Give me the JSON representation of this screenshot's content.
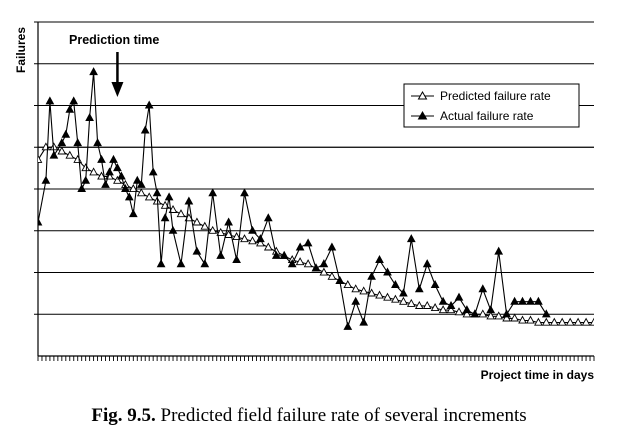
{
  "chart_data": {
    "type": "line",
    "ylabel": "Failures",
    "xlabel": "Project time in days",
    "annotation": "Prediction time",
    "annotation_x": 20,
    "y_ticks_labeled": false,
    "ylim": [
      0,
      8
    ],
    "xlim": [
      0,
      140
    ],
    "grid": "horizontal",
    "legend_position": "top-right",
    "caption_prefix": "Fig. 9.5.",
    "caption_text": "Predicted field failure rate of several increments",
    "series": [
      {
        "name": "Predicted failure rate",
        "marker": "hollow-triangle",
        "x": [
          0,
          2,
          4,
          6,
          8,
          10,
          12,
          14,
          16,
          18,
          20,
          22,
          24,
          26,
          28,
          30,
          32,
          34,
          36,
          38,
          40,
          42,
          44,
          46,
          48,
          50,
          52,
          54,
          56,
          58,
          60,
          62,
          64,
          66,
          68,
          70,
          72,
          74,
          76,
          78,
          80,
          82,
          84,
          86,
          88,
          90,
          92,
          94,
          96,
          98,
          100,
          102,
          104,
          106,
          108,
          110,
          112,
          114,
          116,
          118,
          120,
          122,
          124,
          126,
          128,
          130,
          132,
          134,
          136,
          138,
          140
        ],
        "values": [
          4.7,
          5.0,
          5.0,
          4.9,
          4.8,
          4.7,
          4.5,
          4.4,
          4.3,
          4.3,
          4.2,
          4.1,
          4.0,
          3.9,
          3.8,
          3.7,
          3.6,
          3.5,
          3.4,
          3.3,
          3.2,
          3.1,
          3.0,
          2.95,
          2.9,
          2.85,
          2.8,
          2.75,
          2.7,
          2.6,
          2.5,
          2.4,
          2.3,
          2.25,
          2.2,
          2.1,
          2.0,
          1.9,
          1.8,
          1.7,
          1.6,
          1.55,
          1.5,
          1.45,
          1.4,
          1.35,
          1.3,
          1.25,
          1.2,
          1.2,
          1.15,
          1.1,
          1.1,
          1.05,
          1.0,
          1.0,
          1.0,
          0.95,
          0.95,
          0.9,
          0.9,
          0.85,
          0.85,
          0.8,
          0.8,
          0.8,
          0.8,
          0.8,
          0.8,
          0.8,
          0.8
        ]
      },
      {
        "name": "Actual failure rate",
        "marker": "filled-triangle",
        "x": [
          0,
          2,
          3,
          4,
          6,
          7,
          8,
          9,
          10,
          11,
          12,
          13,
          14,
          15,
          16,
          17,
          18,
          19,
          20,
          21,
          22,
          23,
          24,
          25,
          26,
          27,
          28,
          29,
          30,
          31,
          32,
          33,
          34,
          36,
          38,
          40,
          42,
          44,
          46,
          48,
          50,
          52,
          54,
          56,
          58,
          60,
          62,
          64,
          66,
          68,
          70,
          72,
          74,
          76,
          78,
          80,
          82,
          84,
          86,
          88,
          90,
          92,
          94,
          96,
          98,
          100,
          102,
          104,
          106,
          108,
          110,
          112,
          114,
          116,
          118,
          120,
          122,
          124,
          126,
          128
        ],
        "values": [
          3.2,
          4.2,
          6.1,
          4.8,
          5.1,
          5.3,
          5.9,
          6.1,
          5.1,
          4.0,
          4.2,
          5.7,
          6.8,
          5.1,
          4.7,
          4.1,
          4.4,
          4.7,
          4.5,
          4.3,
          4.0,
          3.8,
          3.4,
          4.2,
          4.1,
          5.4,
          6.0,
          4.4,
          3.9,
          2.2,
          3.3,
          3.8,
          3.0,
          2.2,
          3.7,
          2.5,
          2.2,
          3.9,
          2.4,
          3.2,
          2.3,
          3.9,
          3.0,
          2.8,
          3.3,
          2.4,
          2.4,
          2.2,
          2.6,
          2.7,
          2.1,
          2.2,
          2.6,
          1.8,
          0.7,
          1.3,
          0.8,
          1.9,
          2.3,
          2.0,
          1.7,
          1.5,
          2.8,
          1.6,
          2.2,
          1.7,
          1.3,
          1.2,
          1.4,
          1.1,
          1.0,
          1.6,
          1.1,
          2.5,
          1.0,
          1.3,
          1.3,
          1.3,
          1.3,
          1.0
        ]
      }
    ]
  }
}
